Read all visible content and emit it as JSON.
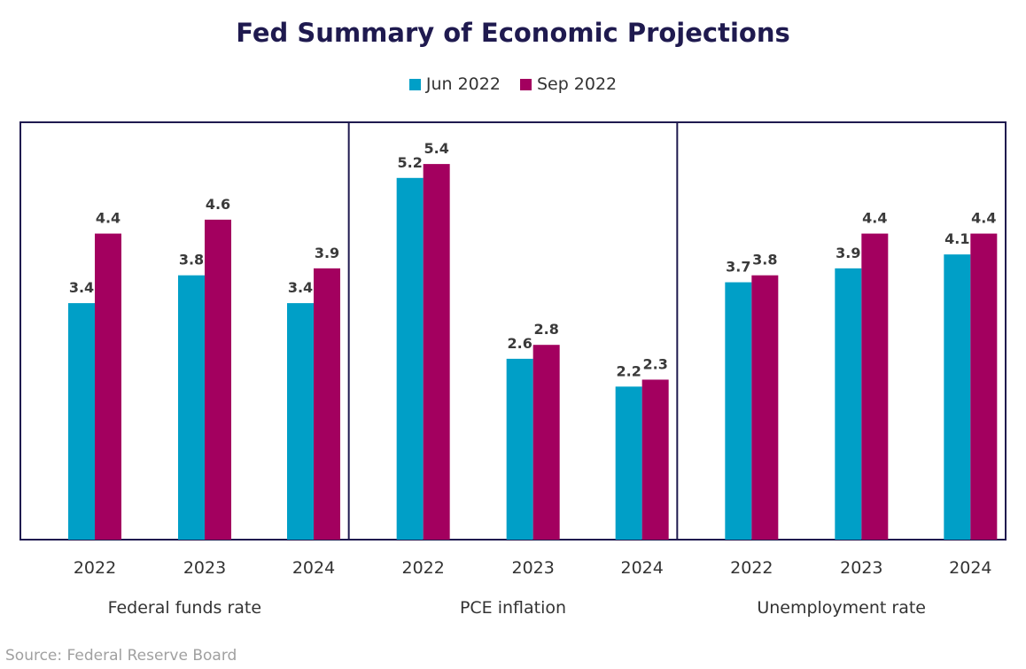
{
  "title": "Fed Summary of Economic Projections",
  "source": "Source: Federal Reserve Board",
  "colors": {
    "series": [
      "#009fc7",
      "#a3005f"
    ],
    "frame": "#1f1a4f",
    "label": "#3a3a3a"
  },
  "legend": [
    {
      "name": "Jun 2022"
    },
    {
      "name": "Sep 2022"
    }
  ],
  "chart_data": {
    "type": "bar",
    "title": "Fed Summary of Economic Projections",
    "ylim": [
      0,
      6
    ],
    "grid": false,
    "legend_position": "top",
    "series_names": [
      "Jun 2022",
      "Sep 2022"
    ],
    "panels": [
      {
        "label": "Federal funds rate",
        "categories": [
          "2022",
          "2023",
          "2024"
        ],
        "series": [
          {
            "name": "Jun 2022",
            "values": [
              3.4,
              3.8,
              3.4
            ]
          },
          {
            "name": "Sep 2022",
            "values": [
              4.4,
              4.6,
              3.9
            ]
          }
        ]
      },
      {
        "label": "PCE inflation",
        "categories": [
          "2022",
          "2023",
          "2024"
        ],
        "series": [
          {
            "name": "Jun 2022",
            "values": [
              5.2,
              2.6,
              2.2
            ]
          },
          {
            "name": "Sep 2022",
            "values": [
              5.4,
              2.8,
              2.3
            ]
          }
        ]
      },
      {
        "label": "Unemployment rate",
        "categories": [
          "2022",
          "2023",
          "2024"
        ],
        "series": [
          {
            "name": "Jun 2022",
            "values": [
              3.7,
              3.9,
              4.1
            ]
          },
          {
            "name": "Sep 2022",
            "values": [
              3.8,
              4.4,
              4.4
            ]
          }
        ]
      }
    ]
  }
}
